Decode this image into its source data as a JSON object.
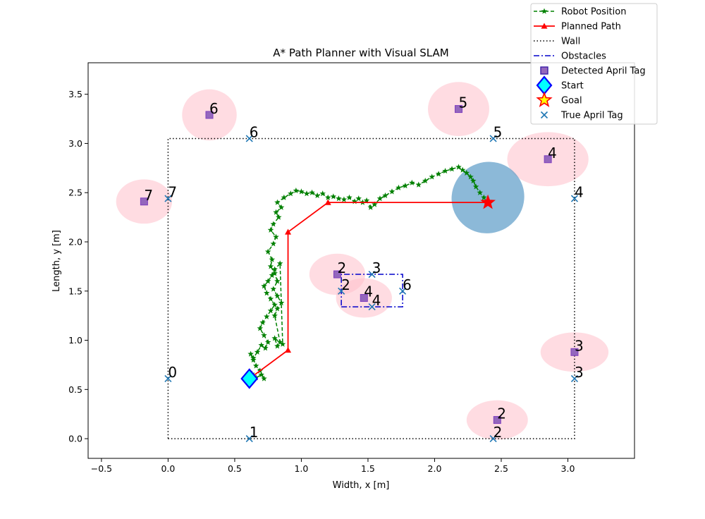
{
  "chart_data": {
    "type": "scatter",
    "title": "A* Path Planner with Visual SLAM",
    "xlabel": "Width, x [m]",
    "ylabel": "Length, y [m]",
    "xlim": [
      -0.6,
      3.5
    ],
    "ylim": [
      -0.2,
      3.82
    ],
    "x_ticks": [
      -0.5,
      0.0,
      0.5,
      1.0,
      1.5,
      2.0,
      2.5,
      3.0
    ],
    "x_tick_labels": [
      "−0.5",
      "0.0",
      "0.5",
      "1.0",
      "1.5",
      "2.0",
      "2.5",
      "3.0"
    ],
    "y_ticks": [
      0.0,
      0.5,
      1.0,
      1.5,
      2.0,
      2.5,
      3.0,
      3.5
    ],
    "y_tick_labels": [
      "0.0",
      "0.5",
      "1.0",
      "1.5",
      "2.0",
      "2.5",
      "3.0",
      "3.5"
    ],
    "grid": false,
    "legend_position": "top-right (outside axes)",
    "legend": [
      {
        "label": "Robot Position",
        "kind": "robot"
      },
      {
        "label": "Planned Path",
        "kind": "path"
      },
      {
        "label": "Wall",
        "kind": "wall"
      },
      {
        "label": "Obstacles",
        "kind": "obstacle"
      },
      {
        "label": "Detected April Tag",
        "kind": "detected"
      },
      {
        "label": "Start",
        "kind": "start"
      },
      {
        "label": "Goal",
        "kind": "goal"
      },
      {
        "label": "True April Tag",
        "kind": "truetag"
      }
    ],
    "wall": {
      "x": [
        0.0,
        3.05,
        3.05,
        0.0,
        0.0
      ],
      "y": [
        0.0,
        0.0,
        3.05,
        3.05,
        0.0
      ]
    },
    "obstacle": {
      "x": [
        1.3,
        1.76,
        1.76,
        1.3,
        1.3
      ],
      "y": [
        1.34,
        1.34,
        1.67,
        1.67,
        1.34
      ]
    },
    "planned_path": {
      "x": [
        0.61,
        0.9,
        0.9,
        1.2,
        2.4
      ],
      "y": [
        0.61,
        0.9,
        2.1,
        2.4,
        2.4
      ]
    },
    "robot_position": {
      "x": [
        0.61,
        0.63,
        0.66,
        0.7,
        0.72,
        0.69,
        0.66,
        0.64,
        0.62,
        0.64,
        0.67,
        0.7,
        0.73,
        0.75,
        0.72,
        0.69,
        0.71,
        0.74,
        0.77,
        0.8,
        0.77,
        0.74,
        0.72,
        0.75,
        0.78,
        0.8,
        0.84,
        0.86,
        0.8,
        0.82,
        0.84,
        0.8,
        0.82,
        0.85,
        0.82,
        0.79,
        0.82,
        0.8,
        0.77,
        0.78,
        0.75,
        0.79,
        0.81,
        0.77,
        0.79,
        0.83,
        0.81,
        0.85,
        0.82,
        0.87,
        0.92,
        0.96,
        1.0,
        1.04,
        1.08,
        1.12,
        1.16,
        1.2,
        1.24,
        1.28,
        1.32,
        1.36,
        1.4,
        1.43,
        1.46,
        1.49,
        1.52,
        1.55,
        1.59,
        1.63,
        1.68,
        1.73,
        1.78,
        1.83,
        1.88,
        1.93,
        1.98,
        2.03,
        2.08,
        2.13,
        2.18,
        2.21,
        2.24,
        2.27,
        2.29,
        2.31,
        2.34,
        2.37,
        2.4
      ],
      "y": [
        0.63,
        0.66,
        0.62,
        0.65,
        0.61,
        0.69,
        0.74,
        0.8,
        0.86,
        0.82,
        0.88,
        0.95,
        0.92,
        0.98,
        1.05,
        1.12,
        1.18,
        1.24,
        1.3,
        1.36,
        1.42,
        1.48,
        1.55,
        1.6,
        1.66,
        1.72,
        1.78,
        0.96,
        1.02,
        0.94,
        0.98,
        1.25,
        1.32,
        1.38,
        1.45,
        1.52,
        1.6,
        1.68,
        1.75,
        1.82,
        1.9,
        1.98,
        2.05,
        2.12,
        2.18,
        2.25,
        2.3,
        2.35,
        2.4,
        2.45,
        2.49,
        2.52,
        2.51,
        2.49,
        2.5,
        2.47,
        2.49,
        2.45,
        2.46,
        2.44,
        2.43,
        2.45,
        2.41,
        2.44,
        2.4,
        2.42,
        2.35,
        2.38,
        2.44,
        2.47,
        2.51,
        2.55,
        2.57,
        2.6,
        2.58,
        2.62,
        2.66,
        2.69,
        2.72,
        2.74,
        2.76,
        2.73,
        2.7,
        2.66,
        2.62,
        2.56,
        2.5,
        2.45,
        2.4
      ]
    },
    "start": {
      "x": 0.61,
      "y": 0.61
    },
    "goal": {
      "x": 2.4,
      "y": 2.4
    },
    "goal_uncertainty": {
      "cx": 2.4,
      "cy": 2.45,
      "w": 0.55,
      "h": 0.72,
      "angle_deg": -30,
      "color": "#5b9bc8"
    },
    "true_tags": [
      {
        "id": "0",
        "x": 0.0,
        "y": 0.61
      },
      {
        "id": "1",
        "x": 0.61,
        "y": 0.0
      },
      {
        "id": "2",
        "x": 2.44,
        "y": 0.0
      },
      {
        "id": "3",
        "x": 3.05,
        "y": 0.61
      },
      {
        "id": "4",
        "x": 3.05,
        "y": 2.44
      },
      {
        "id": "5",
        "x": 2.44,
        "y": 3.05
      },
      {
        "id": "6",
        "x": 0.61,
        "y": 3.05
      },
      {
        "id": "7",
        "x": 0.0,
        "y": 2.44
      },
      {
        "id": "2",
        "x": 1.3,
        "y": 1.5
      },
      {
        "id": "3",
        "x": 1.53,
        "y": 1.67
      },
      {
        "id": "4",
        "x": 1.53,
        "y": 1.34
      },
      {
        "id": "6",
        "x": 1.76,
        "y": 1.5
      }
    ],
    "detected_tags": [
      {
        "id": "6",
        "x": 0.31,
        "y": 3.29,
        "ex": 0.41,
        "ey": 0.52
      },
      {
        "id": "7",
        "x": -0.18,
        "y": 2.41,
        "ex": 0.42,
        "ey": 0.45
      },
      {
        "id": "5",
        "x": 2.18,
        "y": 3.35,
        "ex": 0.46,
        "ey": 0.55
      },
      {
        "id": "4",
        "x": 2.85,
        "y": 2.84,
        "ex": 0.61,
        "ey": 0.55
      },
      {
        "id": "2",
        "x": 1.27,
        "y": 1.67,
        "ex": 0.42,
        "ey": 0.42
      },
      {
        "id": "4",
        "x": 1.47,
        "y": 1.43,
        "ex": 0.42,
        "ey": 0.4
      },
      {
        "id": "3",
        "x": 3.05,
        "y": 0.88,
        "ex": 0.51,
        "ey": 0.4
      },
      {
        "id": "2",
        "x": 2.47,
        "y": 0.19,
        "ex": 0.46,
        "ey": 0.4
      }
    ],
    "colors": {
      "robot": "#008000",
      "path": "#ff0000",
      "wall": "#000000",
      "obstacle": "#0000cc",
      "detected_fill": "#9467bd",
      "detected_edge": "#7f3fbf",
      "tag_ellipse": "#ffc0cb",
      "true_tag": "#1f77b4",
      "start_fill": "#00ffff",
      "start_edge": "#0000ff",
      "goal_fill": "#ffff00",
      "goal_edge": "#ff0000"
    }
  }
}
